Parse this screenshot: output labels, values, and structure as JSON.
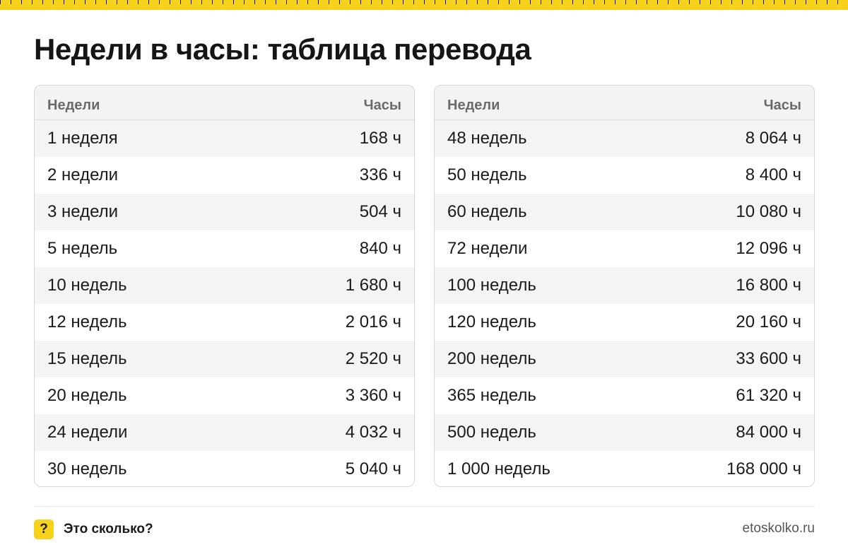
{
  "page": {
    "title": "Недели в часы: таблица перевода"
  },
  "tables": [
    {
      "header": {
        "col1": "Недели",
        "col2": "Часы"
      },
      "rows": [
        {
          "weeks": "1 неделя",
          "hours": "168 ч"
        },
        {
          "weeks": "2 недели",
          "hours": "336 ч"
        },
        {
          "weeks": "3 недели",
          "hours": "504 ч"
        },
        {
          "weeks": "5 недель",
          "hours": "840 ч"
        },
        {
          "weeks": "10 недель",
          "hours": "1 680 ч"
        },
        {
          "weeks": "12 недель",
          "hours": "2 016 ч"
        },
        {
          "weeks": "15 недель",
          "hours": "2 520 ч"
        },
        {
          "weeks": "20 недель",
          "hours": "3 360 ч"
        },
        {
          "weeks": "24 недели",
          "hours": "4 032 ч"
        },
        {
          "weeks": "30 недель",
          "hours": "5 040 ч"
        }
      ]
    },
    {
      "header": {
        "col1": "Недели",
        "col2": "Часы"
      },
      "rows": [
        {
          "weeks": "48 недель",
          "hours": "8 064 ч"
        },
        {
          "weeks": "50 недель",
          "hours": "8 400 ч"
        },
        {
          "weeks": "60 недель",
          "hours": "10 080 ч"
        },
        {
          "weeks": "72 недели",
          "hours": "12 096 ч"
        },
        {
          "weeks": "100 недель",
          "hours": "16 800 ч"
        },
        {
          "weeks": "120 недель",
          "hours": "20 160 ч"
        },
        {
          "weeks": "200 недель",
          "hours": "33 600 ч"
        },
        {
          "weeks": "365 недель",
          "hours": "61 320 ч"
        },
        {
          "weeks": "500 недель",
          "hours": "84 000 ч"
        },
        {
          "weeks": "1 000 недель",
          "hours": "168 000 ч"
        }
      ]
    }
  ],
  "footer": {
    "logo_glyph": "?",
    "brand": "Это сколько?",
    "site": "etoskolko.ru"
  },
  "colors": {
    "accent": "#f7d21c",
    "row_stripe": "#f4f4f4",
    "header_bg": "#f3f3f3"
  }
}
